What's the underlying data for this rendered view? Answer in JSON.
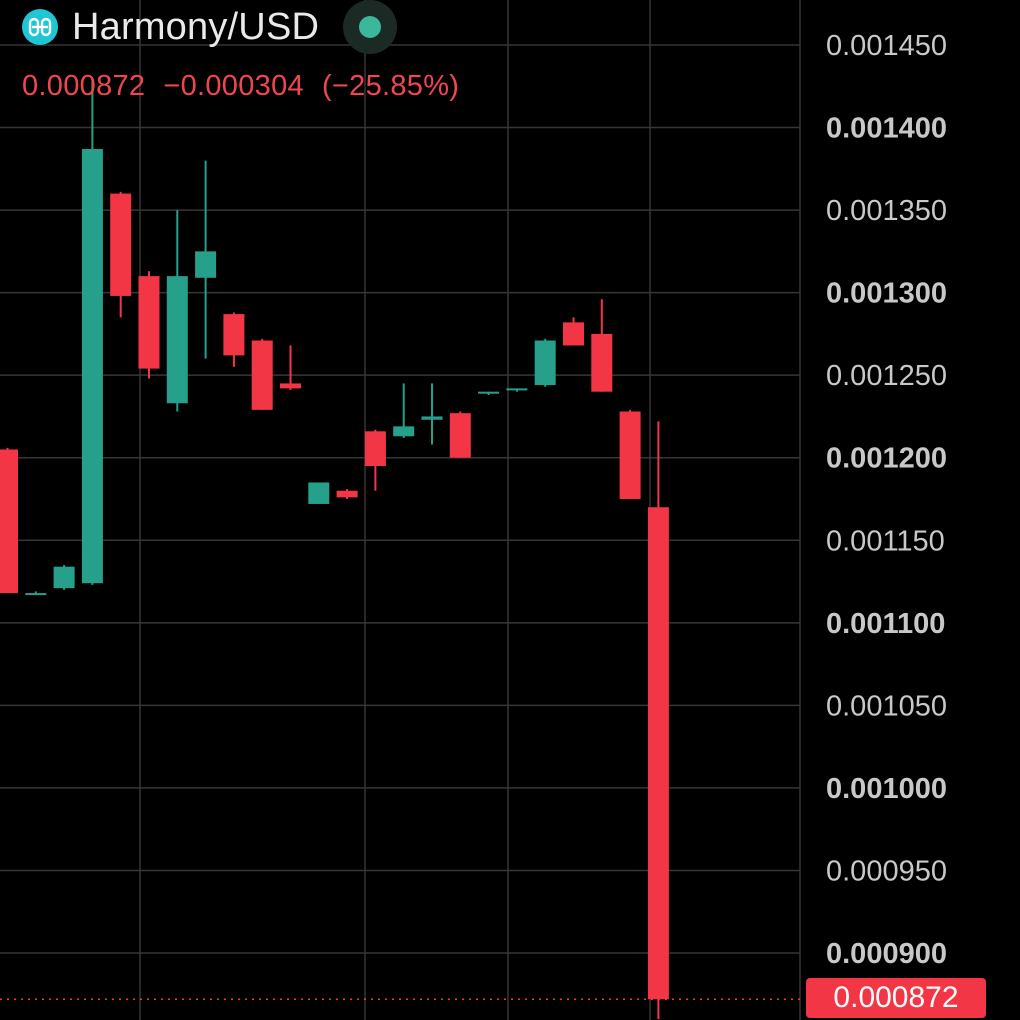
{
  "header": {
    "symbol": "Harmony/USD",
    "logo_icon": "harmony-logo-icon",
    "status_icon": "market-status-dot-icon",
    "last_price": "0.000872",
    "change": "−0.000304",
    "change_pct": "(−25.85%)"
  },
  "colors": {
    "background": "#000000",
    "grid": "#363636",
    "up": "#26a08a",
    "down": "#f23645",
    "axis_text": "#c8c8c8"
  },
  "price_tag": {
    "value": "0.000872"
  },
  "chart_data": {
    "type": "candlestick",
    "ylim": [
      0.00086,
      0.00147
    ],
    "y_ticks": [
      0.00145,
      0.0014,
      0.00135,
      0.0013,
      0.00125,
      0.0012,
      0.00115,
      0.0011,
      0.00105,
      0.001,
      0.00095,
      0.0009
    ],
    "y_tick_labels": [
      "0.001450",
      "0.001400",
      "0.001350",
      "0.001300",
      "0.001250",
      "0.001200",
      "0.001150",
      "0.001100",
      "0.001050",
      "0.001000",
      "0.000950",
      "0.000900"
    ],
    "last_price": 0.000872,
    "grid": true,
    "candles": [
      {
        "o": 0.001205,
        "h": 0.001206,
        "l": 0.001118,
        "c": 0.001118
      },
      {
        "o": 0.001118,
        "h": 0.001119,
        "l": 0.001117,
        "c": 0.001118
      },
      {
        "o": 0.001121,
        "h": 0.001135,
        "l": 0.00112,
        "c": 0.001134
      },
      {
        "o": 0.001124,
        "h": 0.00143,
        "l": 0.001123,
        "c": 0.001387
      },
      {
        "o": 0.00136,
        "h": 0.001361,
        "l": 0.001285,
        "c": 0.001298
      },
      {
        "o": 0.00131,
        "h": 0.001313,
        "l": 0.001248,
        "c": 0.001254
      },
      {
        "o": 0.001233,
        "h": 0.00135,
        "l": 0.001228,
        "c": 0.00131
      },
      {
        "o": 0.001309,
        "h": 0.00138,
        "l": 0.00126,
        "c": 0.001325
      },
      {
        "o": 0.001287,
        "h": 0.001288,
        "l": 0.001255,
        "c": 0.001262
      },
      {
        "o": 0.001271,
        "h": 0.001272,
        "l": 0.001229,
        "c": 0.001229
      },
      {
        "o": 0.001245,
        "h": 0.001268,
        "l": 0.001241,
        "c": 0.001242
      },
      {
        "o": 0.001172,
        "h": 0.001185,
        "l": 0.001172,
        "c": 0.001185
      },
      {
        "o": 0.00118,
        "h": 0.001181,
        "l": 0.001175,
        "c": 0.001176
      },
      {
        "o": 0.001216,
        "h": 0.001217,
        "l": 0.00118,
        "c": 0.001195
      },
      {
        "o": 0.001213,
        "h": 0.001245,
        "l": 0.001212,
        "c": 0.001219
      },
      {
        "o": 0.001223,
        "h": 0.001245,
        "l": 0.001208,
        "c": 0.001225
      },
      {
        "o": 0.001227,
        "h": 0.001228,
        "l": 0.0012,
        "c": 0.0012
      },
      {
        "o": 0.001239,
        "h": 0.00124,
        "l": 0.001238,
        "c": 0.00124
      },
      {
        "o": 0.001241,
        "h": 0.001242,
        "l": 0.00124,
        "c": 0.001242
      },
      {
        "o": 0.001244,
        "h": 0.001272,
        "l": 0.001243,
        "c": 0.001271
      },
      {
        "o": 0.001282,
        "h": 0.001285,
        "l": 0.001268,
        "c": 0.001268
      },
      {
        "o": 0.001275,
        "h": 0.001296,
        "l": 0.00124,
        "c": 0.00124
      },
      {
        "o": 0.001228,
        "h": 0.001229,
        "l": 0.001175,
        "c": 0.001175
      },
      {
        "o": 0.00117,
        "h": 0.001222,
        "l": 0.00086,
        "c": 0.000872
      }
    ]
  }
}
